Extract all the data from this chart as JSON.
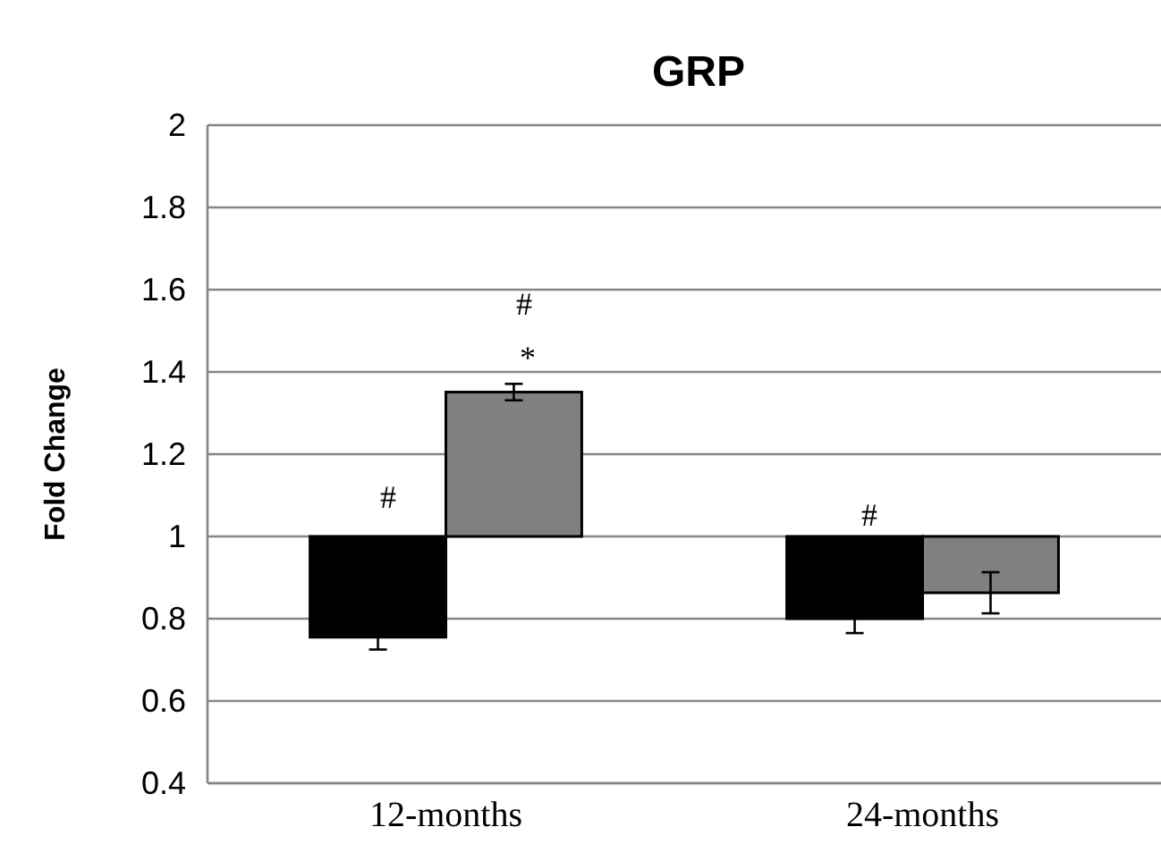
{
  "chart_data": {
    "type": "bar",
    "title": "GRP",
    "ylabel": "Fold Change",
    "categories": [
      "12-months",
      "24-months"
    ],
    "series": [
      {
        "color": "#000000",
        "base": [
          1,
          1
        ],
        "values": [
          -0.245,
          -0.2
        ],
        "errors": [
          0.03,
          0.035
        ]
      },
      {
        "color": "#808080",
        "base": [
          1,
          1
        ],
        "values": [
          0.351,
          -0.137
        ],
        "errors": [
          0.02,
          0.05
        ]
      }
    ],
    "ylim": [
      0.4,
      2
    ],
    "yticks": [
      0.4,
      0.6,
      0.8,
      1,
      1.2,
      1.4,
      1.6,
      1.8,
      2
    ],
    "grid": "y",
    "annotations": [
      "#",
      "#",
      "*",
      "#"
    ]
  }
}
